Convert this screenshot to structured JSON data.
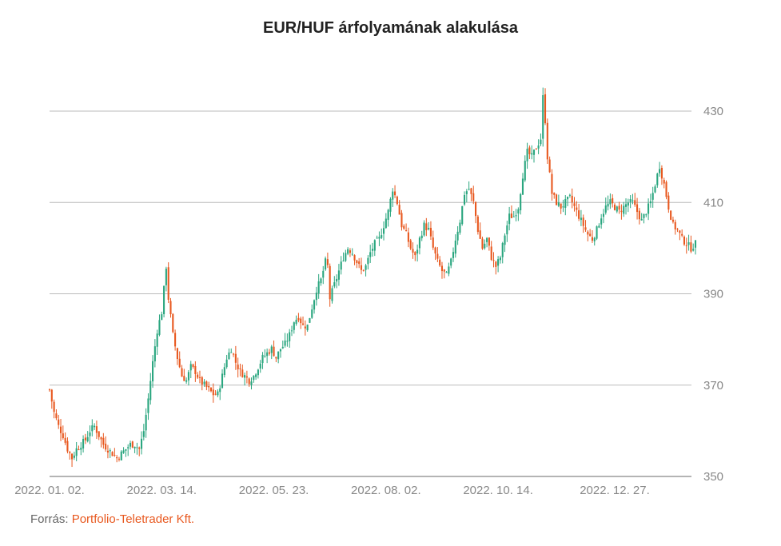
{
  "title": "EUR/HUF árfolyamának alakulása",
  "source": {
    "label": "Forrás:",
    "name": "Portfolio-Teletrader Kft."
  },
  "colors": {
    "up": "#2aa67f",
    "down": "#e8581f",
    "grid": "#bbbbbb",
    "axis": "#888888"
  },
  "chart_data": {
    "type": "candlestick",
    "title": "EUR/HUF árfolyamának alakulása",
    "xlabel": "",
    "ylabel": "",
    "ylim": [
      350,
      434
    ],
    "y_ticks": [
      350,
      370,
      390,
      410,
      430
    ],
    "x_ticks": [
      {
        "label": "2022. 01. 02.",
        "index": 0
      },
      {
        "label": "2022. 03. 14.",
        "index": 50
      },
      {
        "label": "2022. 05. 23.",
        "index": 100
      },
      {
        "label": "2022. 08. 02.",
        "index": 150
      },
      {
        "label": "2022. 10. 14.",
        "index": 200
      },
      {
        "label": "2022. 12. 27.",
        "index": 252
      }
    ],
    "y_axis_position": "right",
    "grid": true,
    "keyframes": [
      [
        0,
        369
      ],
      [
        2,
        364
      ],
      [
        4,
        361
      ],
      [
        6,
        359
      ],
      [
        8,
        356
      ],
      [
        10,
        354
      ],
      [
        12,
        356
      ],
      [
        14,
        357
      ],
      [
        16,
        358
      ],
      [
        18,
        360
      ],
      [
        20,
        361
      ],
      [
        22,
        359
      ],
      [
        24,
        357
      ],
      [
        26,
        356
      ],
      [
        28,
        355
      ],
      [
        30,
        354
      ],
      [
        32,
        355
      ],
      [
        34,
        356
      ],
      [
        36,
        357
      ],
      [
        38,
        357
      ],
      [
        40,
        356
      ],
      [
        42,
        360
      ],
      [
        44,
        367
      ],
      [
        46,
        375
      ],
      [
        48,
        382
      ],
      [
        50,
        386
      ],
      [
        51,
        391
      ],
      [
        52,
        396
      ],
      [
        53,
        389
      ],
      [
        55,
        381
      ],
      [
        57,
        376
      ],
      [
        59,
        372
      ],
      [
        61,
        371
      ],
      [
        63,
        374
      ],
      [
        65,
        373
      ],
      [
        67,
        371
      ],
      [
        69,
        370
      ],
      [
        71,
        369
      ],
      [
        73,
        368
      ],
      [
        75,
        368
      ],
      [
        77,
        372
      ],
      [
        79,
        376
      ],
      [
        81,
        378
      ],
      [
        83,
        375
      ],
      [
        85,
        373
      ],
      [
        87,
        372
      ],
      [
        89,
        371
      ],
      [
        91,
        372
      ],
      [
        93,
        374
      ],
      [
        95,
        376
      ],
      [
        97,
        377
      ],
      [
        99,
        378
      ],
      [
        101,
        376
      ],
      [
        103,
        378
      ],
      [
        105,
        379
      ],
      [
        107,
        381
      ],
      [
        109,
        384
      ],
      [
        111,
        385
      ],
      [
        113,
        383
      ],
      [
        115,
        383
      ],
      [
        117,
        387
      ],
      [
        119,
        391
      ],
      [
        121,
        393
      ],
      [
        123,
        397
      ],
      [
        124,
        396
      ],
      [
        125,
        389
      ],
      [
        127,
        392
      ],
      [
        129,
        395
      ],
      [
        131,
        398
      ],
      [
        133,
        400
      ],
      [
        135,
        399
      ],
      [
        137,
        397
      ],
      [
        139,
        395
      ],
      [
        141,
        396
      ],
      [
        143,
        399
      ],
      [
        145,
        401
      ],
      [
        147,
        402
      ],
      [
        149,
        405
      ],
      [
        151,
        408
      ],
      [
        153,
        413
      ],
      [
        155,
        410
      ],
      [
        157,
        405
      ],
      [
        159,
        403
      ],
      [
        161,
        400
      ],
      [
        163,
        398
      ],
      [
        165,
        402
      ],
      [
        167,
        405
      ],
      [
        169,
        404
      ],
      [
        171,
        400
      ],
      [
        173,
        397
      ],
      [
        175,
        395
      ],
      [
        177,
        394
      ],
      [
        179,
        397
      ],
      [
        181,
        402
      ],
      [
        183,
        406
      ],
      [
        185,
        412
      ],
      [
        187,
        413
      ],
      [
        189,
        410
      ],
      [
        191,
        404
      ],
      [
        193,
        400
      ],
      [
        195,
        402
      ],
      [
        197,
        398
      ],
      [
        199,
        396
      ],
      [
        201,
        398
      ],
      [
        203,
        403
      ],
      [
        205,
        407
      ],
      [
        207,
        407
      ],
      [
        209,
        409
      ],
      [
        211,
        416
      ],
      [
        213,
        421
      ],
      [
        215,
        420
      ],
      [
        217,
        422
      ],
      [
        219,
        424
      ],
      [
        220,
        433
      ],
      [
        221,
        428
      ],
      [
        222,
        420
      ],
      [
        224,
        412
      ],
      [
        226,
        410
      ],
      [
        228,
        409
      ],
      [
        230,
        410
      ],
      [
        232,
        411
      ],
      [
        234,
        409
      ],
      [
        236,
        407
      ],
      [
        238,
        405
      ],
      [
        240,
        403
      ],
      [
        242,
        402
      ],
      [
        244,
        404
      ],
      [
        246,
        407
      ],
      [
        248,
        409
      ],
      [
        250,
        410
      ],
      [
        252,
        409
      ],
      [
        254,
        408
      ],
      [
        256,
        409
      ],
      [
        258,
        410
      ],
      [
        260,
        410
      ],
      [
        262,
        408
      ],
      [
        264,
        406
      ],
      [
        266,
        408
      ],
      [
        268,
        410
      ],
      [
        270,
        414
      ],
      [
        272,
        418
      ],
      [
        274,
        414
      ],
      [
        276,
        409
      ],
      [
        278,
        405
      ],
      [
        280,
        404
      ],
      [
        282,
        402
      ],
      [
        284,
        401
      ],
      [
        286,
        400
      ],
      [
        288,
        401
      ]
    ],
    "n_candles": 289
  }
}
